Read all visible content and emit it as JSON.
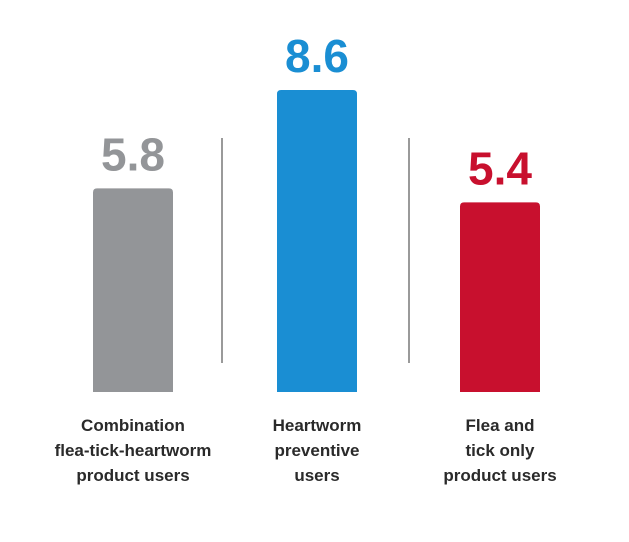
{
  "chart_data": {
    "type": "bar",
    "categories": [
      [
        "Combination",
        "flea-tick-heartworm",
        "product users"
      ],
      [
        "Heartworm",
        "preventive",
        "users"
      ],
      [
        "Flea and",
        "tick only",
        "product users"
      ]
    ],
    "values": [
      5.8,
      8.6,
      5.4
    ],
    "value_labels": [
      "5.8",
      "8.6",
      "5.4"
    ],
    "colors": [
      "#939598",
      "#1a8ed3",
      "#c8102e"
    ],
    "ylim": [
      0,
      8.6
    ],
    "grid": false,
    "legend": "none",
    "separators": true
  }
}
